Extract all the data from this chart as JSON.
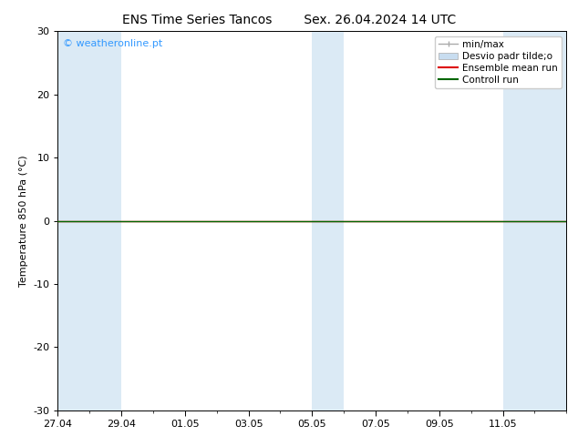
{
  "title_left": "ENS Time Series Tancos",
  "title_right": "Sex. 26.04.2024 14 UTC",
  "ylabel": "Temperature 850 hPa (°C)",
  "watermark": "© weatheronline.pt",
  "watermark_color": "#3399ff",
  "ylim": [
    -30,
    30
  ],
  "yticks": [
    -30,
    -20,
    -10,
    0,
    10,
    20,
    30
  ],
  "xtick_labels": [
    "27.04",
    "29.04",
    "01.05",
    "03.05",
    "05.05",
    "07.05",
    "09.05",
    "11.05"
  ],
  "xtick_positions": [
    0,
    2,
    4,
    6,
    8,
    10,
    12,
    14
  ],
  "xlim": [
    0,
    16
  ],
  "bg_color": "#ffffff",
  "plot_bg_color": "#ffffff",
  "shaded_band_color": "#dbeaf5",
  "shaded_bands": [
    [
      0,
      1
    ],
    [
      1,
      2
    ],
    [
      8,
      9
    ],
    [
      14,
      16
    ]
  ],
  "ensemble_mean_color": "#dd0000",
  "control_run_color": "#006600",
  "minmax_color": "#aaaaaa",
  "std_color": "#c8ddf0",
  "legend_entries": [
    "min/max",
    "Desvio padr tilde;o",
    "Ensemble mean run",
    "Controll run"
  ],
  "title_fontsize": 10,
  "axis_label_fontsize": 8,
  "tick_fontsize": 8,
  "legend_fontsize": 7.5
}
